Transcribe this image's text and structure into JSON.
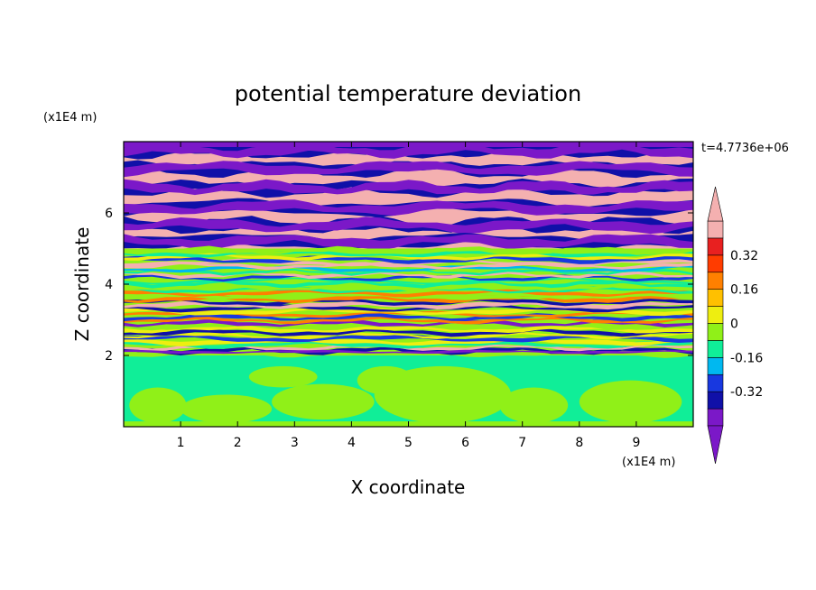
{
  "chart_data": {
    "type": "heatmap",
    "title": "potential temperature deviation",
    "xlabel": "X coordinate",
    "ylabel": "Z coordinate",
    "x_unit": "(x1E4 m)",
    "y_unit": "(x1E4 m)",
    "time_label": "t=4.7736e+06",
    "xlim": [
      0,
      10
    ],
    "ylim": [
      0,
      8
    ],
    "x_ticks": [
      "1",
      "2",
      "3",
      "4",
      "5",
      "6",
      "7",
      "8",
      "9"
    ],
    "y_ticks": [
      "2",
      "4",
      "6"
    ],
    "colorbar": {
      "levels": [
        -0.48,
        -0.4,
        -0.32,
        -0.24,
        -0.16,
        -0.08,
        0,
        0.08,
        0.16,
        0.24,
        0.32,
        0.4,
        0.48
      ],
      "colors": [
        "#7b18c8",
        "#1010a8",
        "#1838e0",
        "#00b8f0",
        "#10ee98",
        "#90f018",
        "#eeee10",
        "#ffc000",
        "#ff8000",
        "#ff3c00",
        "#e82020",
        "#f4b0b0"
      ],
      "under_color": "#7b18c8",
      "over_color": "#f4b0b0",
      "tick_labels": [
        "0.32",
        "0.16",
        "0",
        "-0.16",
        "-0.32"
      ]
    },
    "grid": false,
    "bands_description": [
      {
        "z_range": [
          0,
          2
        ],
        "pattern": "mixed green/yellow-green"
      },
      {
        "z_range": [
          2,
          5
        ],
        "pattern": "thin alternating multicolor layers"
      },
      {
        "z_range": [
          5,
          8
        ],
        "pattern": "alternating pink/purple layers"
      }
    ]
  }
}
